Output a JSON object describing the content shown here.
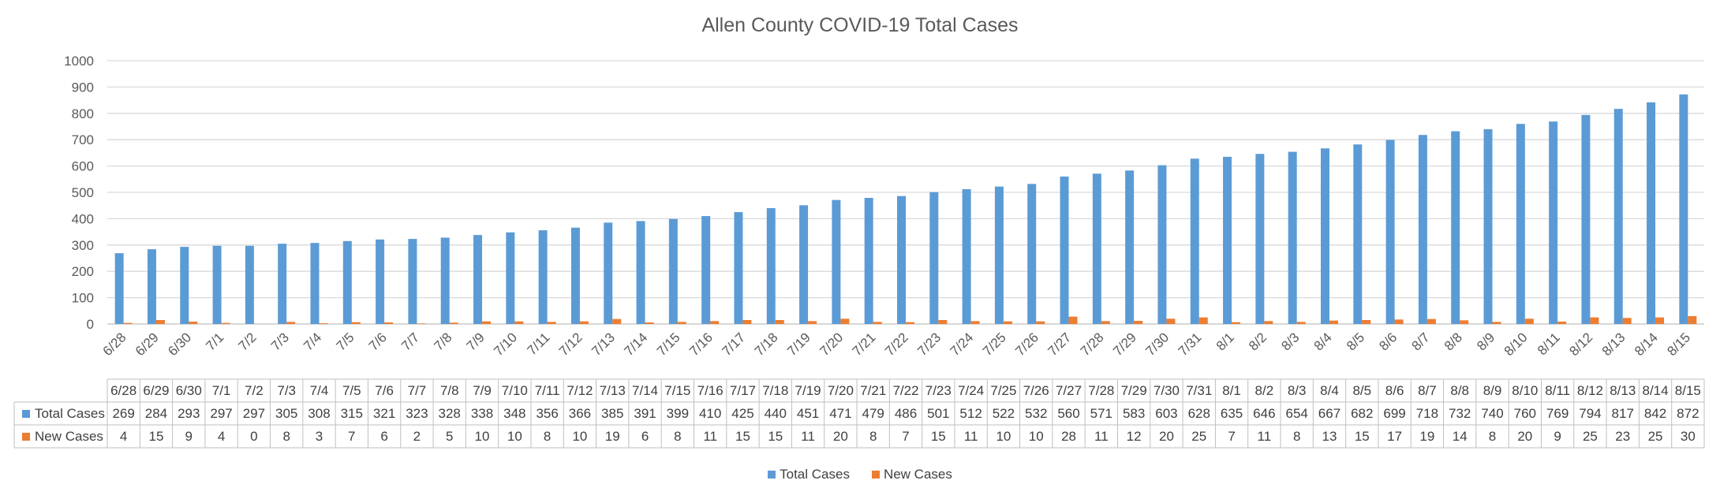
{
  "chart_data": {
    "type": "bar",
    "title": "Allen County COVID-19 Total Cases",
    "categories": [
      "6/28",
      "6/29",
      "6/30",
      "7/1",
      "7/2",
      "7/3",
      "7/4",
      "7/5",
      "7/6",
      "7/7",
      "7/8",
      "7/9",
      "7/10",
      "7/11",
      "7/12",
      "7/13",
      "7/14",
      "7/15",
      "7/16",
      "7/17",
      "7/18",
      "7/19",
      "7/20",
      "7/21",
      "7/22",
      "7/23",
      "7/24",
      "7/25",
      "7/26",
      "7/27",
      "7/28",
      "7/29",
      "7/30",
      "7/31",
      "8/1",
      "8/2",
      "8/3",
      "8/4",
      "8/5",
      "8/6",
      "8/7",
      "8/8",
      "8/9",
      "8/10",
      "8/11",
      "8/12",
      "8/13",
      "8/14",
      "8/15"
    ],
    "series": [
      {
        "name": "Total Cases",
        "color": "#5B9BD5",
        "values": [
          269,
          284,
          293,
          297,
          297,
          305,
          308,
          315,
          321,
          323,
          328,
          338,
          348,
          356,
          366,
          385,
          391,
          399,
          410,
          425,
          440,
          451,
          471,
          479,
          486,
          501,
          512,
          522,
          532,
          560,
          571,
          583,
          603,
          628,
          635,
          646,
          654,
          667,
          682,
          699,
          718,
          732,
          740,
          760,
          769,
          794,
          817,
          842,
          872
        ]
      },
      {
        "name": "New Cases",
        "color": "#ED7D31",
        "values": [
          4,
          15,
          9,
          4,
          0,
          8,
          3,
          7,
          6,
          2,
          5,
          10,
          10,
          8,
          10,
          19,
          6,
          8,
          11,
          15,
          15,
          11,
          20,
          8,
          7,
          15,
          11,
          10,
          10,
          28,
          11,
          12,
          20,
          25,
          7,
          11,
          8,
          13,
          15,
          17,
          19,
          14,
          8,
          20,
          9,
          25,
          23,
          25,
          30
        ]
      }
    ],
    "ylim": [
      0,
      1000
    ],
    "yticks": [
      0,
      100,
      200,
      300,
      400,
      500,
      600,
      700,
      800,
      900,
      1000
    ],
    "grid": true,
    "legend_position": "bottom",
    "data_table": true
  }
}
